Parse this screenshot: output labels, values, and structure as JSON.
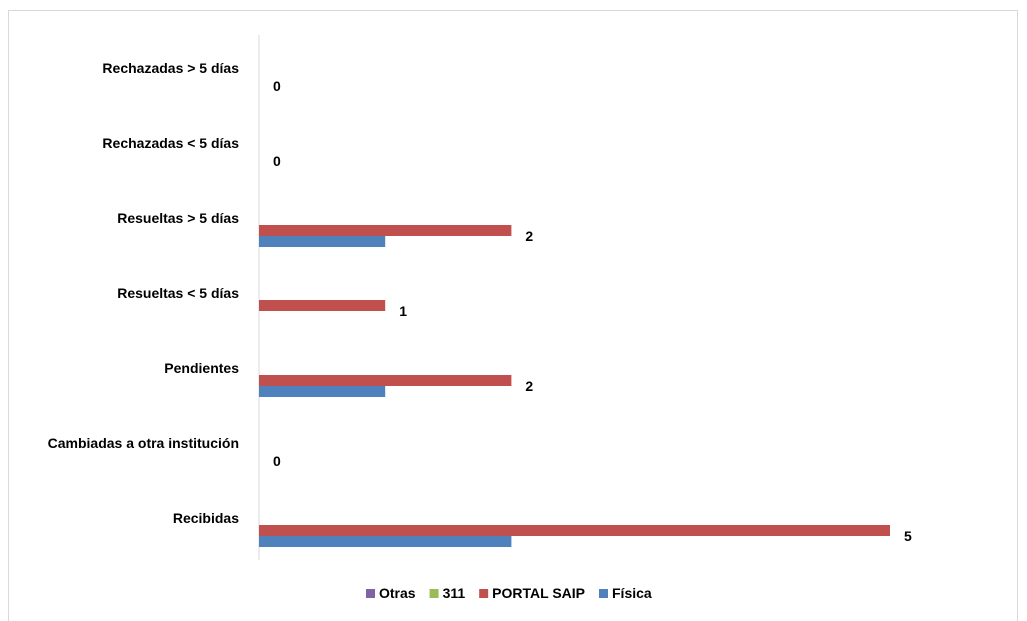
{
  "chart_data": {
    "type": "bar",
    "orientation": "horizontal",
    "categories": [
      "Recibidas",
      "Cambiadas a otra institución",
      "Pendientes",
      "Resueltas < 5 días",
      "Resueltas > 5 días",
      "Rechazadas  < 5 días",
      "Rechazadas  > 5 días"
    ],
    "series": [
      {
        "name": "Otras",
        "color": "#8064A2",
        "values": [
          0,
          0,
          0,
          0,
          0,
          0,
          0
        ]
      },
      {
        "name": "311",
        "color": "#9BBB59",
        "values": [
          0,
          0,
          0,
          0,
          0,
          0,
          0
        ]
      },
      {
        "name": "PORTAL SAIP",
        "color": "#C0504D",
        "values": [
          5,
          0,
          2,
          1,
          2,
          0,
          0
        ]
      },
      {
        "name": "Física",
        "color": "#4F81BD",
        "values": [
          2,
          0,
          1,
          0,
          1,
          0,
          0
        ]
      }
    ],
    "data_labels": [
      "5",
      "0",
      "2",
      "1",
      "2",
      "0",
      "0"
    ],
    "xlim": [
      0,
      5
    ],
    "grid": false,
    "legend_position": "bottom",
    "title": "",
    "xlabel": "",
    "ylabel": ""
  }
}
